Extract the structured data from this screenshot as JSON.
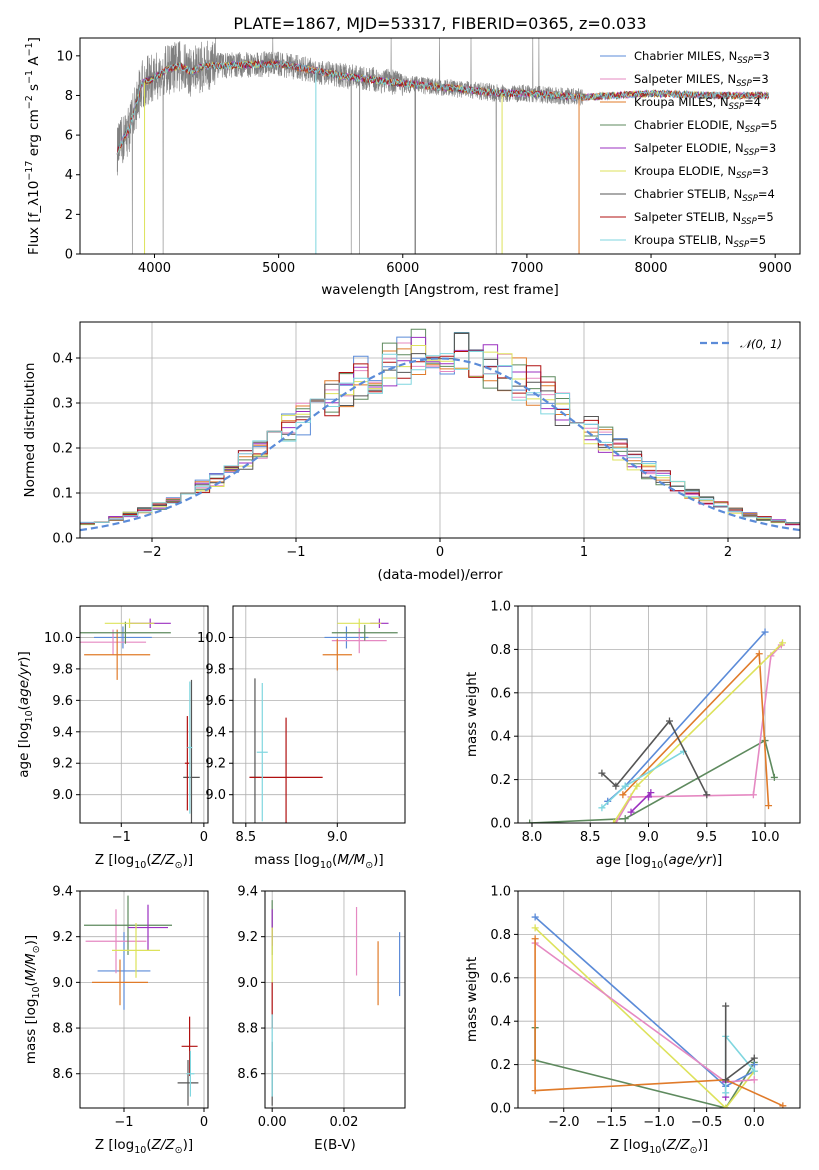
{
  "figure_title": "PLATE=1867, MJD=53317, FIBERID=0365, z=0.033",
  "model_colors": [
    "#5b8bd8",
    "#e589c2",
    "#e07b2a",
    "#5e8a5e",
    "#9b30c0",
    "#dde25b",
    "#555555",
    "#b01010",
    "#7fd6df"
  ],
  "legend_entries": [
    "Chabrier MILES, N_SSP=3",
    "Salpeter MILES, N_SSP=3",
    "Kroupa MILES, N_SSP=4",
    "Chabrier ELODIE, N_SSP=5",
    "Salpeter ELODIE, N_SSP=3",
    "Kroupa ELODIE, N_SSP=3",
    "Chabrier STELIB, N_SSP=4",
    "Salpeter STELIB, N_SSP=5",
    "Kroupa STELIB, N_SSP=5"
  ],
  "chart_data": [
    {
      "id": "spectrum",
      "type": "line",
      "xlabel": "wavelength [Angstrom, rest frame]",
      "ylabel": "Flux [f_λ10^-17 erg cm^-2 s^-1 A^-1]",
      "xlim": [
        3400,
        9200
      ],
      "ylim": [
        0,
        10.9
      ],
      "xticks": [
        4000,
        5000,
        6000,
        7000,
        8000,
        9000
      ],
      "yticks": [
        0,
        2,
        4,
        6,
        8,
        10
      ],
      "data_color": "#808080",
      "data_wavelength_range": [
        3700,
        7450
      ],
      "continuum": {
        "x": [
          3700,
          3800,
          3900,
          4000,
          4100,
          4200,
          4300,
          4400,
          4500,
          5000,
          5500,
          6000,
          6500,
          6800,
          7000,
          7450,
          8000,
          8500,
          8950
        ],
        "y": [
          5.2,
          6.4,
          8.6,
          8.9,
          9.3,
          9.5,
          9.2,
          9.5,
          9.5,
          9.6,
          9.0,
          8.6,
          8.3,
          8.1,
          8.1,
          7.9,
          8.1,
          8.0,
          8.0
        ]
      },
      "model_wavelength_range": [
        3700,
        8950
      ]
    },
    {
      "id": "residuals",
      "type": "histogram",
      "xlabel": "(data-model)/error",
      "ylabel": "Normed distribution",
      "xlim": [
        -2.5,
        2.5
      ],
      "ylim": [
        0,
        0.48
      ],
      "xticks": [
        -2,
        -1,
        0,
        1,
        2
      ],
      "yticks": [
        0.0,
        0.1,
        0.2,
        0.3,
        0.4
      ],
      "legend": "N(0,1)",
      "bin_width": 0.1,
      "reference_curve": "gaussian"
    },
    {
      "id": "age_vs_Z",
      "type": "scatter",
      "xlabel": "Z [log10(Z/Z_sun)]",
      "ylabel": "age  [log10(age/yr)]",
      "xlim": [
        -1.5,
        0.05
      ],
      "ylim": [
        8.82,
        10.2
      ],
      "xticks": [
        -1,
        0
      ],
      "yticks": [
        9.0,
        9.2,
        9.4,
        9.6,
        9.8,
        10.0
      ],
      "points": [
        {
          "x": -0.98,
          "y": 10.0,
          "xerr": 0.35,
          "yerr": 0.07,
          "color": "#5b8bd8"
        },
        {
          "x": -1.1,
          "y": 9.97,
          "xerr": 0.4,
          "yerr": 0.08,
          "color": "#e589c2"
        },
        {
          "x": -1.05,
          "y": 9.89,
          "xerr": 0.4,
          "yerr": 0.16,
          "color": "#e07b2a"
        },
        {
          "x": -0.95,
          "y": 10.03,
          "xerr": 0.55,
          "yerr": 0.07,
          "color": "#5e8a5e"
        },
        {
          "x": -0.65,
          "y": 10.09,
          "xerr": 0.25,
          "yerr": 0.03,
          "color": "#9b30c0"
        },
        {
          "x": -0.9,
          "y": 10.09,
          "xerr": 0.3,
          "yerr": 0.03,
          "color": "#dde25b"
        },
        {
          "x": -0.15,
          "y": 9.11,
          "xerr": 0.1,
          "yerr": 0.62,
          "color": "#555555"
        },
        {
          "x": -0.2,
          "y": 9.2,
          "xerr": 0.03,
          "yerr": 0.3,
          "color": "#b01010"
        },
        {
          "x": -0.17,
          "y": 9.3,
          "xerr": 0.03,
          "yerr": 0.42,
          "color": "#7fd6df"
        }
      ]
    },
    {
      "id": "age_vs_mass",
      "type": "scatter",
      "xlabel": "mass [log10(M/M_sun)]",
      "xlim": [
        8.43,
        9.37
      ],
      "ylim": [
        8.82,
        10.2
      ],
      "xticks": [
        8.5,
        9.0
      ],
      "yticks": [
        9.0,
        9.2,
        9.4,
        9.6,
        9.8,
        10.0
      ],
      "points": [
        {
          "x": 9.05,
          "y": 10.0,
          "xerr": 0.12,
          "yerr": 0.07,
          "color": "#5b8bd8"
        },
        {
          "x": 9.12,
          "y": 9.98,
          "xerr": 0.15,
          "yerr": 0.08,
          "color": "#e589c2"
        },
        {
          "x": 9.0,
          "y": 9.89,
          "xerr": 0.08,
          "yerr": 0.1,
          "color": "#e07b2a"
        },
        {
          "x": 9.15,
          "y": 10.03,
          "xerr": 0.18,
          "yerr": 0.05,
          "color": "#5e8a5e"
        },
        {
          "x": 9.23,
          "y": 10.09,
          "xerr": 0.05,
          "yerr": 0.03,
          "color": "#9b30c0"
        },
        {
          "x": 9.12,
          "y": 10.09,
          "xerr": 0.12,
          "yerr": 0.03,
          "color": "#dde25b"
        },
        {
          "x": 8.55,
          "y": 9.11,
          "xerr": 0.03,
          "yerr": 0.63,
          "color": "#555555"
        },
        {
          "x": 8.72,
          "y": 9.11,
          "xerr": 0.2,
          "yerr": 0.38,
          "color": "#b01010"
        },
        {
          "x": 8.59,
          "y": 9.27,
          "xerr": 0.03,
          "yerr": 0.44,
          "color": "#7fd6df"
        }
      ]
    },
    {
      "id": "weight_vs_age",
      "type": "line",
      "xlabel": "age  [log10(age/yr)]",
      "ylabel": "mass weight",
      "xlim": [
        7.88,
        10.3
      ],
      "ylim": [
        0,
        1.0
      ],
      "xticks": [
        8.0,
        8.5,
        9.0,
        9.5,
        10.0
      ],
      "yticks": [
        0.0,
        0.2,
        0.4,
        0.6,
        0.8,
        1.0
      ],
      "series": [
        {
          "color": "#5e8a5e",
          "x": [
            7.98,
            8.8,
            10.0,
            10.08
          ],
          "y": [
            0.0,
            0.02,
            0.38,
            0.21
          ]
        },
        {
          "color": "#e589c2",
          "x": [
            8.72,
            8.85,
            9.9,
            10.05,
            10.14
          ],
          "y": [
            0.0,
            0.12,
            0.13,
            0.77,
            0.82
          ]
        },
        {
          "color": "#9b30c0",
          "x": [
            8.85,
            9.02,
            9.0
          ],
          "y": [
            0.05,
            0.14,
            0.12
          ]
        },
        {
          "color": "#e07b2a",
          "x": [
            8.78,
            9.95,
            10.03
          ],
          "y": [
            0.13,
            0.78,
            0.08
          ]
        },
        {
          "color": "#dde25b",
          "x": [
            8.7,
            8.9,
            10.15
          ],
          "y": [
            0.0,
            0.17,
            0.83
          ]
        },
        {
          "color": "#5b8bd8",
          "x": [
            8.65,
            8.8,
            10.0
          ],
          "y": [
            0.1,
            0.17,
            0.88
          ]
        },
        {
          "color": "#7fd6df",
          "x": [
            8.6,
            8.8,
            9.3
          ],
          "y": [
            0.07,
            0.17,
            0.33
          ]
        },
        {
          "color": "#555555",
          "x": [
            8.6,
            8.72,
            9.18,
            9.5
          ],
          "y": [
            0.23,
            0.17,
            0.47,
            0.13
          ]
        }
      ]
    },
    {
      "id": "mass_vs_Z",
      "type": "scatter",
      "xlabel": "Z [log10(Z/Z_sun)]",
      "ylabel": "mass [log10(M/M_sun)]",
      "xlim": [
        -1.55,
        0.05
      ],
      "ylim": [
        8.45,
        9.4
      ],
      "xticks": [
        -1,
        0
      ],
      "yticks": [
        8.6,
        8.8,
        9.0,
        9.2,
        9.4
      ],
      "points": [
        {
          "x": -1.0,
          "y": 9.05,
          "xerr": 0.33,
          "yerr": 0.17,
          "color": "#5b8bd8"
        },
        {
          "x": -1.1,
          "y": 9.18,
          "xerr": 0.38,
          "yerr": 0.14,
          "color": "#e589c2"
        },
        {
          "x": -1.05,
          "y": 9.0,
          "xerr": 0.35,
          "yerr": 0.1,
          "color": "#e07b2a"
        },
        {
          "x": -0.95,
          "y": 9.25,
          "xerr": 0.55,
          "yerr": 0.13,
          "color": "#5e8a5e"
        },
        {
          "x": -0.7,
          "y": 9.24,
          "xerr": 0.25,
          "yerr": 0.1,
          "color": "#9b30c0"
        },
        {
          "x": -0.85,
          "y": 9.14,
          "xerr": 0.3,
          "yerr": 0.12,
          "color": "#dde25b"
        },
        {
          "x": -0.2,
          "y": 8.56,
          "xerr": 0.13,
          "yerr": 0.1,
          "color": "#555555"
        },
        {
          "x": -0.18,
          "y": 8.72,
          "xerr": 0.1,
          "yerr": 0.13,
          "color": "#b01010"
        },
        {
          "x": -0.17,
          "y": 8.6,
          "xerr": 0.05,
          "yerr": 0.1,
          "color": "#7fd6df"
        }
      ]
    },
    {
      "id": "mass_vs_ebv",
      "type": "scatter",
      "xlabel": "E(B-V)",
      "xlim": [
        -0.002,
        0.037
      ],
      "ylim": [
        8.45,
        9.4
      ],
      "xticks": [
        0.0,
        0.02
      ],
      "yticks": [
        8.6,
        8.8,
        9.0,
        9.2,
        9.4
      ],
      "points": [
        {
          "x": 0.0355,
          "y": 9.08,
          "yerr": 0.14,
          "color": "#5b8bd8"
        },
        {
          "x": 0.0235,
          "y": 9.18,
          "yerr": 0.15,
          "color": "#e589c2"
        },
        {
          "x": 0.0295,
          "y": 9.04,
          "yerr": 0.14,
          "color": "#e07b2a"
        },
        {
          "x": 0.0,
          "y": 9.24,
          "yerr": 0.12,
          "color": "#5e8a5e"
        },
        {
          "x": 0.0,
          "y": 9.24,
          "yerr": 0.08,
          "color": "#9b30c0"
        },
        {
          "x": 0.0,
          "y": 9.12,
          "yerr": 0.12,
          "color": "#dde25b"
        },
        {
          "x": 0.0,
          "y": 8.6,
          "yerr": 0.14,
          "color": "#555555"
        },
        {
          "x": 0.0,
          "y": 8.9,
          "yerr": 0.1,
          "color": "#b01010"
        },
        {
          "x": 0.0,
          "y": 8.68,
          "yerr": 0.18,
          "color": "#7fd6df"
        }
      ]
    },
    {
      "id": "weight_vs_Z",
      "type": "line",
      "xlabel": "Z [log10(Z/Z_sun)]",
      "ylabel": "mass weight",
      "xlim": [
        -2.48,
        0.48
      ],
      "ylim": [
        0,
        1.0
      ],
      "xticks": [
        -2.0,
        -1.5,
        -1.0,
        -0.5,
        0.0
      ],
      "yticks": [
        0.0,
        0.2,
        0.4,
        0.6,
        0.8,
        1.0
      ],
      "series": [
        {
          "color": "#5e8a5e",
          "x": [
            -2.3,
            -2.3,
            -0.3,
            0.0
          ],
          "y": [
            0.37,
            0.22,
            0.0,
            0.21
          ]
        },
        {
          "color": "#5b8bd8",
          "x": [
            -2.3,
            -0.3,
            0.0,
            0.0
          ],
          "y": [
            0.88,
            0.1,
            0.17,
            0.2
          ]
        },
        {
          "color": "#dde25b",
          "x": [
            -2.3,
            -0.3,
            0.0
          ],
          "y": [
            0.83,
            0.0,
            0.17
          ]
        },
        {
          "color": "#e589c2",
          "x": [
            -2.3,
            -0.3,
            0.0
          ],
          "y": [
            0.76,
            0.12,
            0.13
          ]
        },
        {
          "color": "#9b30c0",
          "x": [
            -0.3,
            -0.3
          ],
          "y": [
            0.05,
            0.12
          ]
        },
        {
          "color": "#e07b2a",
          "x": [
            -2.3,
            -2.3,
            -0.3,
            0.3
          ],
          "y": [
            0.78,
            0.08,
            0.13,
            0.01
          ]
        },
        {
          "color": "#7fd6df",
          "x": [
            -0.3,
            -0.3,
            0.0
          ],
          "y": [
            0.07,
            0.33,
            0.17
          ]
        },
        {
          "color": "#555555",
          "x": [
            -0.3,
            -0.3,
            0.0
          ],
          "y": [
            0.47,
            0.13,
            0.23
          ]
        }
      ]
    }
  ]
}
